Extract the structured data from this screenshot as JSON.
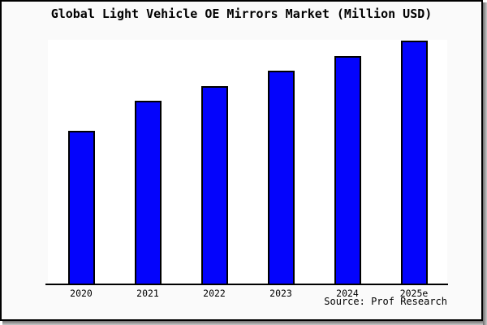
{
  "title": "Global Light Vehicle OE Mirrors Market (Million USD)",
  "source_label": "Source: Prof Research",
  "colors": {
    "bar_fill": "#0404fc",
    "bar_border": "#000000",
    "frame_background": "#fafafa",
    "plot_background": "#ffffff",
    "axis": "#000000",
    "frame_border": "#000000",
    "shadow": "#6e6e6e",
    "text": "#000000"
  },
  "chart_data": {
    "type": "bar",
    "title": "Global Light Vehicle OE Mirrors Market (Million USD)",
    "categories": [
      "2020",
      "2021",
      "2022",
      "2023",
      "2024",
      "2025e"
    ],
    "values": [
      62.8,
      75.1,
      81.4,
      87.7,
      93.7,
      100
    ],
    "note": "No y-axis scale or data labels are shown in the chart; values are bar heights expressed as percent of the tallest bar (2025e = 100).",
    "xlabel": "",
    "ylabel": "",
    "grid": false,
    "legend": false,
    "y_axis_visible": false,
    "source": "Source: Prof Research"
  }
}
